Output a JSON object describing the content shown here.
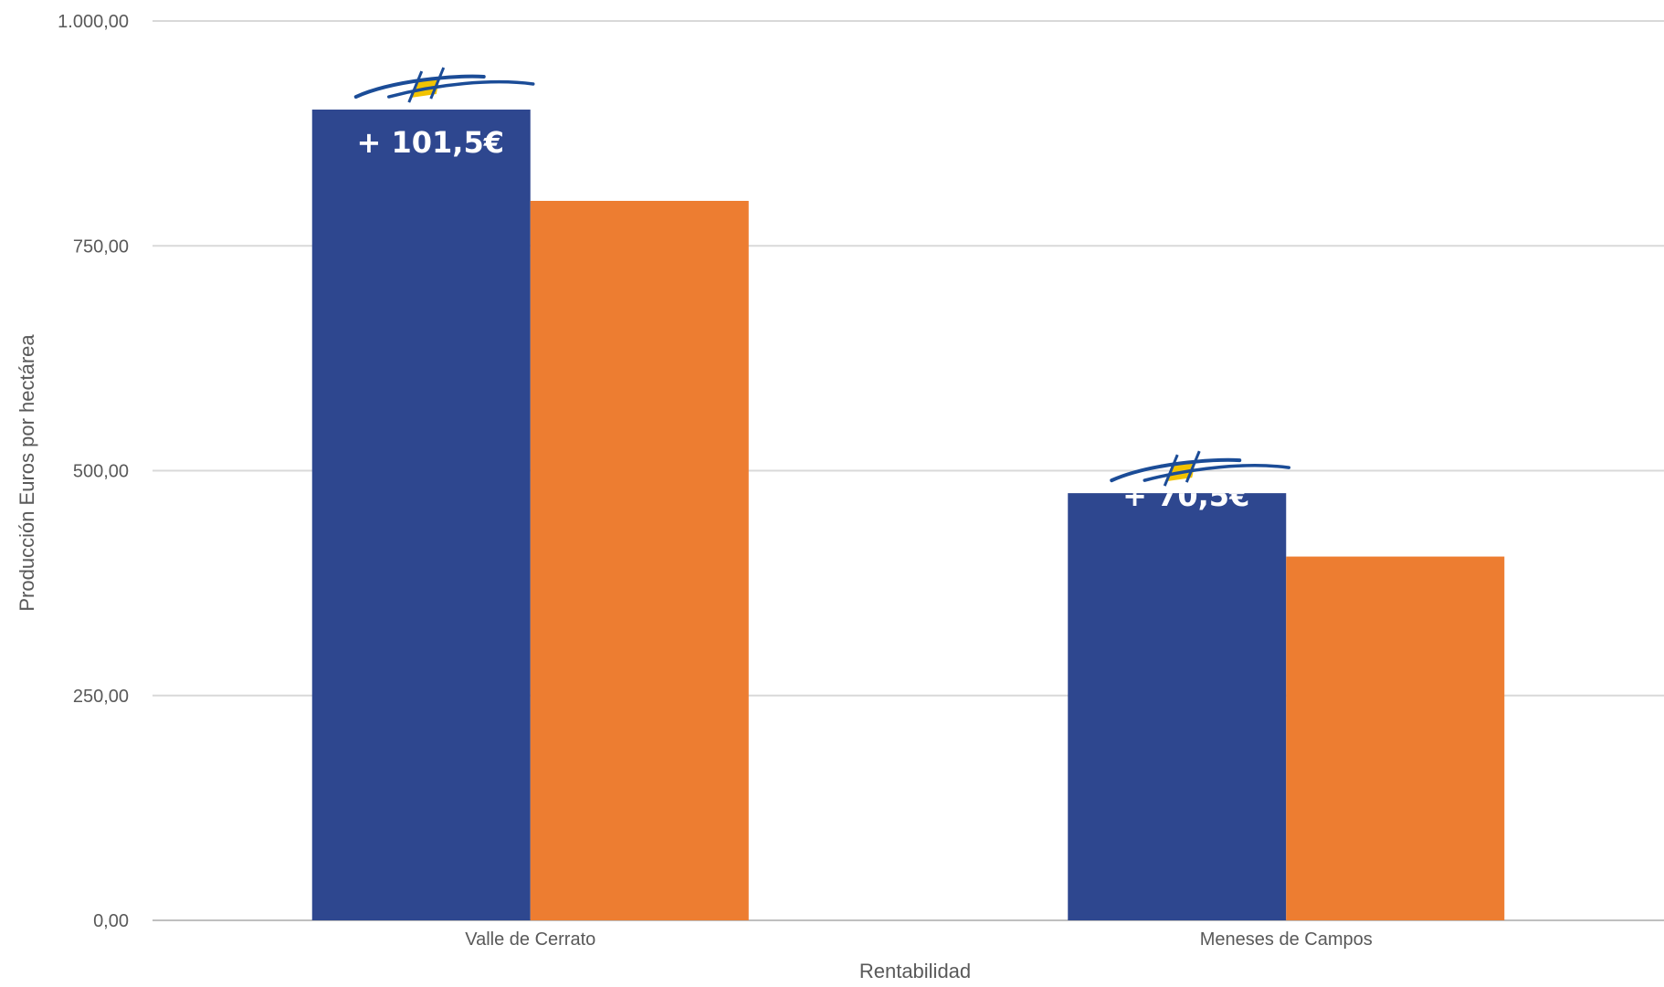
{
  "chart_data": {
    "type": "bar",
    "categories": [
      "Valle de Cerrato",
      "Meneses de Campos"
    ],
    "series": [
      {
        "values": [
          901.5,
          475.0
        ],
        "color": "#2E478F"
      },
      {
        "values": [
          800.0,
          404.5
        ],
        "color": "#ED7D31"
      }
    ],
    "annotations": [
      {
        "category": "Valle de Cerrato",
        "text": "+ 101,5€"
      },
      {
        "category": "Meneses de Campos",
        "text": "+ 70,5€"
      }
    ],
    "ylabel": "Producción Euros por hectárea",
    "xlabel": "Rentabilidad",
    "ylim": [
      0,
      1000
    ],
    "yticks": [
      "0,00",
      "250,00",
      "500,00",
      "750,00",
      "1.000,00"
    ],
    "grid": true,
    "legend": "none",
    "logo_colors": {
      "blue": "#1B4C97",
      "yellow": "#F2C300"
    }
  }
}
